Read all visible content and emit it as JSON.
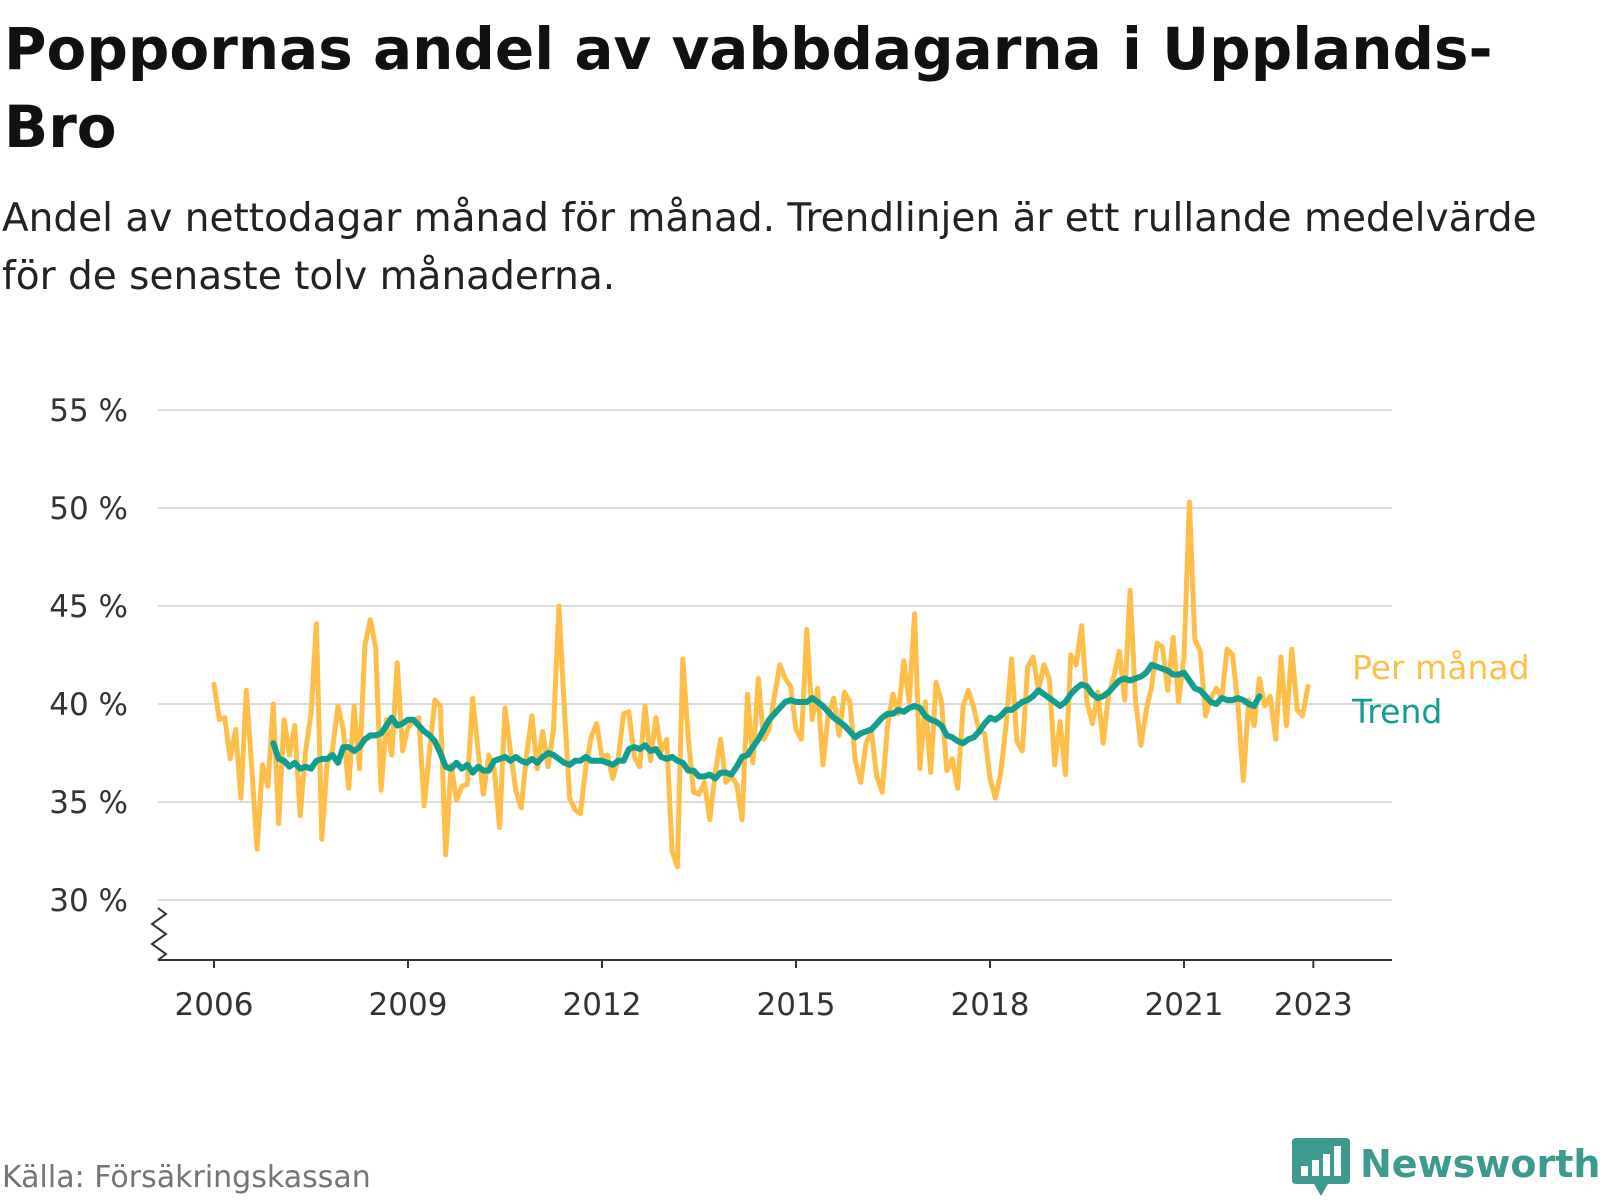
{
  "title": "Poppornas andel av vabbdagarna i Upplands-Bro",
  "subtitle": "Andel av nettodagar månad för månad. Trendlinjen är ett rullande medelvärde för de senaste tolv månaderna.",
  "source": "Källa: Försäkringskassan",
  "brand": {
    "name": "Newsworthy",
    "logo_icon": "bar-chart-speech-bubble-icon"
  },
  "colors": {
    "monthly": "#fdbf4a",
    "trend": "#119e8f",
    "grid": "#dcdcdc",
    "brand": "#3d9a8f"
  },
  "chart_data": {
    "type": "line",
    "x_ticks": [
      2006,
      2009,
      2012,
      2015,
      2018,
      2021,
      2023
    ],
    "y_ticks": [
      30,
      35,
      40,
      45,
      50,
      55
    ],
    "y_tick_labels": [
      "30 %",
      "35 %",
      "40 %",
      "45 %",
      "50 %",
      "55 %"
    ],
    "ylim": [
      27,
      55
    ],
    "xlim": [
      2005.5,
      2024.5
    ],
    "y_axis_break": true,
    "grid": true,
    "legend": "inline-right",
    "series": [
      {
        "name": "Per månad",
        "color": "#fdbf4a",
        "start": 2006.0,
        "step": 0.0833333,
        "values": [
          41,
          39.2,
          39.3,
          37.2,
          38.7,
          35.2,
          40.7,
          36.8,
          32.6,
          36.9,
          35.8,
          40,
          33.9,
          39.2,
          37.4,
          38.9,
          34.3,
          37.6,
          39.5,
          44.1,
          33.1,
          37,
          37.7,
          39.9,
          38.7,
          35.7,
          39.9,
          36.7,
          43,
          44.3,
          42.9,
          35.6,
          39.2,
          37.4,
          42.1,
          37.6,
          38.8,
          39.1,
          39.3,
          34.8,
          37.6,
          40.2,
          39.9,
          32.3,
          36.9,
          35.1,
          35.8,
          35.9,
          40.3,
          37.6,
          35.4,
          37.4,
          36.7,
          33.7,
          39.8,
          37.6,
          35.6,
          34.7,
          37.4,
          39.4,
          36.7,
          38.6,
          36.8,
          38.7,
          45,
          39.8,
          35.2,
          34.6,
          34.4,
          36.8,
          38.3,
          39,
          37.3,
          37.4,
          36.2,
          37.2,
          39.5,
          39.6,
          37.3,
          36.8,
          39.9,
          37.1,
          39.3,
          37.6,
          38.2,
          32.5,
          31.7,
          42.3,
          38.3,
          35.5,
          35.4,
          36,
          34.1,
          36.5,
          38.2,
          36,
          36.3,
          35.9,
          34.1,
          40.5,
          37,
          41.3,
          38.2,
          38.7,
          40.4,
          42,
          41.3,
          40.9,
          38.7,
          38.2,
          43.8,
          39.2,
          40.8,
          36.9,
          39.5,
          40.3,
          38.4,
          40.6,
          40.1,
          37.1,
          36,
          38,
          38.6,
          36.3,
          35.5,
          38.9,
          40.5,
          39.5,
          42.2,
          40.1,
          44.6,
          36.7,
          40.1,
          36.5,
          41.1,
          40.1,
          36.6,
          37.2,
          35.7,
          39.9,
          40.7,
          39.8,
          38.6,
          38.5,
          36.2,
          35.2,
          36.5,
          39,
          42.3,
          38.1,
          37.6,
          41.9,
          42.4,
          40.7,
          42,
          41.3,
          36.9,
          39.1,
          36.4,
          42.5,
          42,
          44,
          40.1,
          39,
          40.6,
          38,
          40.5,
          41.4,
          42.7,
          40.2,
          45.8,
          40.2,
          37.9,
          39.7,
          40.9,
          43.1,
          42.9,
          40.7,
          43.4,
          40.1,
          42.4,
          50.3,
          43.3,
          42.7,
          39.4,
          40.3,
          40.8,
          40.3,
          42.8,
          42.5,
          40,
          36.1,
          40.2,
          38.9,
          41.3,
          39.9,
          40.4,
          38.2,
          42.4,
          38.9,
          42.8,
          39.7,
          39.4,
          40.9
        ]
      },
      {
        "name": "Trend",
        "color": "#119e8f",
        "start": 2006.9167,
        "step": 0.0833333,
        "values": [
          38,
          37.2,
          37.1,
          36.8,
          37,
          36.7,
          36.8,
          36.7,
          37.1,
          37.2,
          37.2,
          37.4,
          37,
          37.8,
          37.8,
          37.6,
          37.8,
          38.2,
          38.4,
          38.4,
          38.5,
          38.9,
          39.3,
          38.9,
          39,
          39.2,
          39.2,
          38.9,
          38.6,
          38.4,
          38.1,
          37.5,
          36.8,
          36.7,
          37,
          36.7,
          36.9,
          36.5,
          36.8,
          36.6,
          36.6,
          37.1,
          37.2,
          37.3,
          37.1,
          37.3,
          37.1,
          37,
          37.2,
          37,
          37.3,
          37.5,
          37.4,
          37.2,
          37,
          36.9,
          37.1,
          37.1,
          37.3,
          37.1,
          37.1,
          37.1,
          37,
          36.9,
          37.1,
          37.1,
          37.7,
          37.8,
          37.7,
          37.9,
          37.6,
          37.7,
          37.3,
          37.2,
          37.3,
          37.1,
          37,
          36.6,
          36.6,
          36.3,
          36.3,
          36.4,
          36.2,
          36.5,
          36.5,
          36.4,
          36.8,
          37.3,
          37.4,
          37.8,
          38.2,
          38.7,
          39.2,
          39.5,
          39.8,
          40.1,
          40.2,
          40.1,
          40.1,
          40.1,
          40.3,
          40.1,
          39.9,
          39.6,
          39.3,
          39.1,
          38.9,
          38.6,
          38.3,
          38.5,
          38.6,
          38.7,
          39,
          39.3,
          39.5,
          39.5,
          39.7,
          39.6,
          39.8,
          39.9,
          39.8,
          39.4,
          39.2,
          39.1,
          38.9,
          38.4,
          38.3,
          38.1,
          38,
          38.2,
          38.3,
          38.6,
          39,
          39.3,
          39.2,
          39.4,
          39.7,
          39.7,
          39.9,
          40.1,
          40.2,
          40.4,
          40.7,
          40.5,
          40.3,
          40.1,
          39.9,
          40.1,
          40.5,
          40.8,
          41,
          40.9,
          40.5,
          40.3,
          40.4,
          40.6,
          40.9,
          41.2,
          41.3,
          41.2,
          41.3,
          41.4,
          41.6,
          42,
          41.9,
          41.8,
          41.7,
          41.5,
          41.5,
          41.6,
          41.2,
          40.8,
          40.7,
          40.4,
          40.1,
          40,
          40.3,
          40.2,
          40.2,
          40.3,
          40.2,
          40,
          39.9,
          40.4
        ]
      }
    ]
  }
}
